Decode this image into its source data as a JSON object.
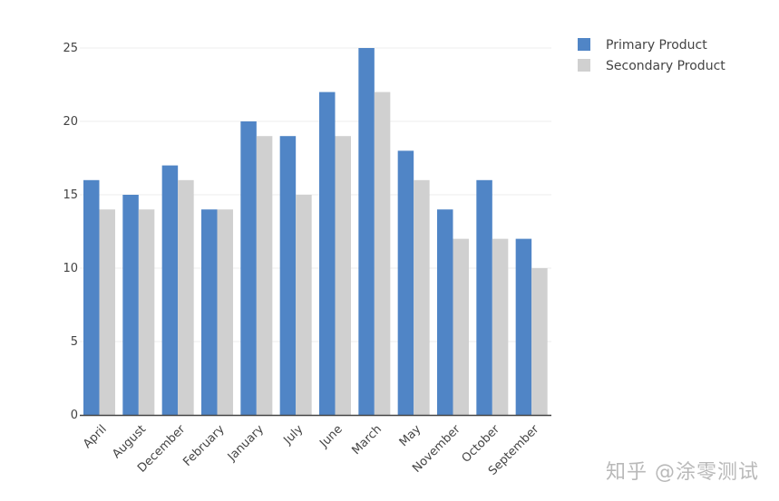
{
  "chart_data": {
    "type": "bar",
    "categories": [
      "April",
      "August",
      "December",
      "February",
      "January",
      "July",
      "June",
      "March",
      "May",
      "November",
      "October",
      "September"
    ],
    "series": [
      {
        "name": "Primary Product",
        "values": [
          16,
          15,
          17,
          14,
          20,
          19,
          22,
          25,
          18,
          14,
          16,
          12
        ],
        "color": "#5085c6"
      },
      {
        "name": "Secondary Product",
        "values": [
          14,
          14,
          16,
          14,
          19,
          15,
          19,
          22,
          16,
          12,
          12,
          10
        ],
        "color": "#d0d0d0"
      }
    ],
    "yticks": [
      0,
      5,
      10,
      15,
      20,
      25
    ],
    "ylim": [
      0,
      25
    ],
    "grid": true,
    "legend_position": "top-right"
  },
  "watermark": "知乎 @涂零测试"
}
